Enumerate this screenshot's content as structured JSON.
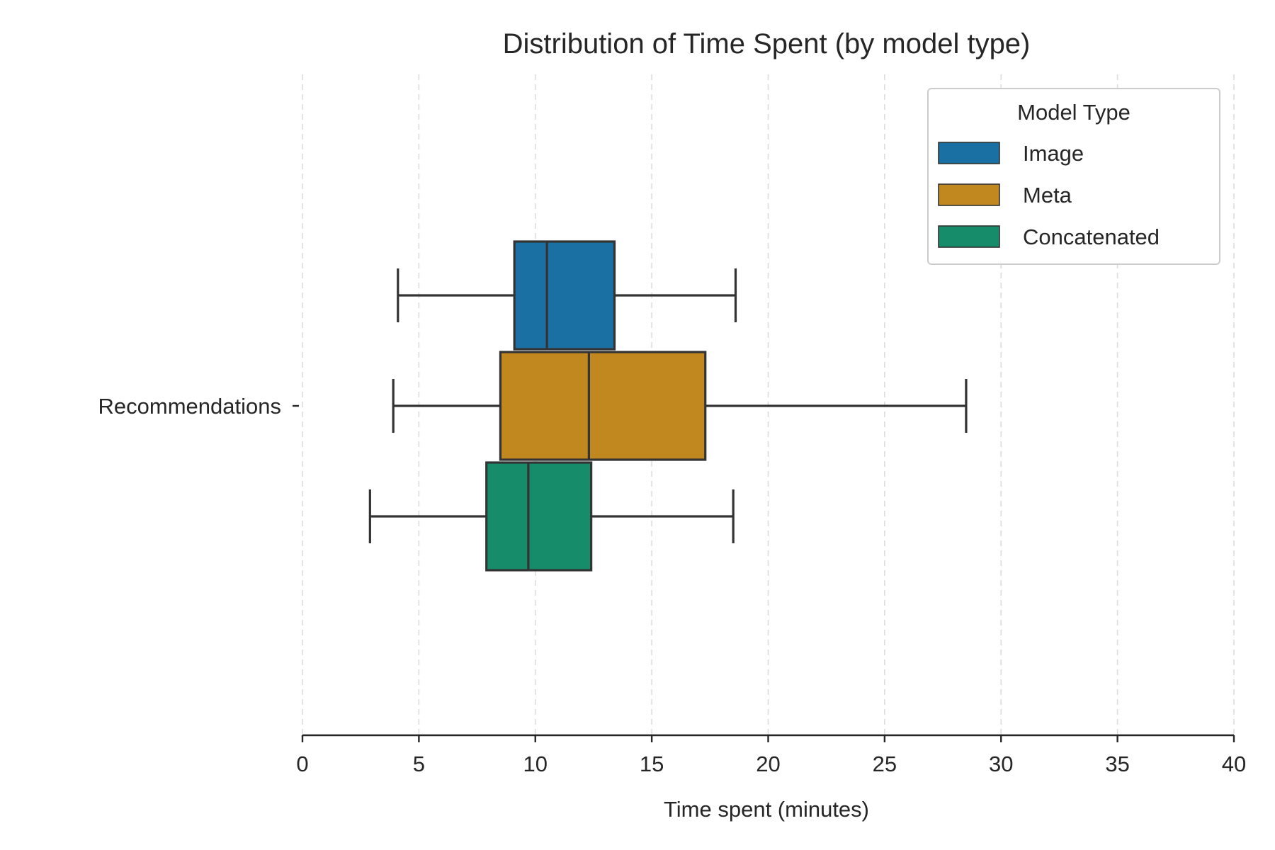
{
  "chart_data": {
    "type": "boxplot",
    "title": "Distribution of Time Spent (by model type)",
    "xlabel": "Time spent (minutes)",
    "ylabel": "",
    "xlim": [
      0,
      40
    ],
    "xticks": [
      0,
      5,
      10,
      15,
      20,
      25,
      30,
      35,
      40
    ],
    "grid": "vertical dashed",
    "categories": [
      "Recommendations"
    ],
    "legend": {
      "title": "Model Type",
      "placement": "top-right"
    },
    "series": [
      {
        "name": "Image",
        "color": "#1a70a2",
        "stats": {
          "whisker_low": 4.1,
          "q1": 9.1,
          "median": 10.5,
          "q3": 13.4,
          "whisker_high": 18.6
        }
      },
      {
        "name": "Meta",
        "color": "#c18820",
        "stats": {
          "whisker_low": 3.9,
          "q1": 8.5,
          "median": 12.3,
          "q3": 17.3,
          "whisker_high": 28.5
        }
      },
      {
        "name": "Concatenated",
        "color": "#168c6a",
        "stats": {
          "whisker_low": 2.9,
          "q1": 7.9,
          "median": 9.7,
          "q3": 12.4,
          "whisker_high": 18.5
        }
      }
    ]
  }
}
